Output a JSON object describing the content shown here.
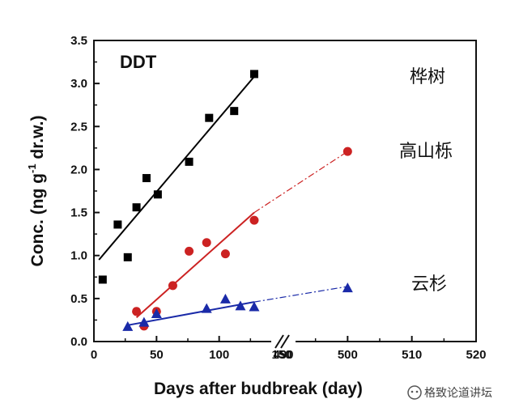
{
  "chart_data": {
    "type": "scatter",
    "title": "DDT",
    "xlabel": "Days after budbreak (day)",
    "ylabel_prefix": "Conc. (ng g",
    "ylabel_sup": "-1",
    "ylabel_suffix": " dr.w.)",
    "ylim": [
      0,
      3.5
    ],
    "y_ticks": [
      "0.0",
      "0.5",
      "1.0",
      "1.5",
      "2.0",
      "2.5",
      "3.0",
      "3.5"
    ],
    "x_ticks": [
      "0",
      "50",
      "100",
      "150",
      "490",
      "500",
      "510",
      "520"
    ],
    "x_break": "between 150 and 490",
    "series": [
      {
        "name": "桦树",
        "marker": "square",
        "color": "#000000",
        "x": [
          7,
          19,
          27,
          34,
          42,
          51,
          76,
          92,
          112,
          128
        ],
        "y": [
          0.72,
          1.36,
          0.98,
          1.56,
          1.9,
          1.71,
          2.09,
          2.6,
          2.68,
          3.11
        ],
        "fit": [
          [
            4,
            0.95
          ],
          [
            128,
            3.08
          ]
        ]
      },
      {
        "name": "高山栎",
        "marker": "circle",
        "color": "#cc2222",
        "x": [
          34,
          40,
          50,
          63,
          76,
          90,
          105,
          128,
          500
        ],
        "y": [
          0.35,
          0.18,
          0.35,
          0.65,
          1.05,
          1.15,
          1.02,
          1.41,
          2.21
        ],
        "fit": [
          [
            34,
            0.28
          ],
          [
            128,
            1.5
          ]
        ],
        "extension": [
          [
            128,
            1.5
          ],
          [
            500,
            2.21
          ]
        ]
      },
      {
        "name": "云杉",
        "marker": "triangle",
        "color": "#1a2aa8",
        "x": [
          27,
          40,
          50,
          90,
          105,
          117,
          128,
          500
        ],
        "y": [
          0.17,
          0.22,
          0.32,
          0.38,
          0.49,
          0.41,
          0.4,
          0.62
        ],
        "fit": [
          [
            27,
            0.19
          ],
          [
            128,
            0.46
          ]
        ],
        "extension": [
          [
            128,
            0.46
          ],
          [
            500,
            0.64
          ]
        ]
      }
    ]
  },
  "watermark": "格致论道讲坛",
  "colors": {
    "axis": "#111111",
    "birch": "#000000",
    "oak": "#cc2222",
    "spruce": "#1a2aa8"
  }
}
